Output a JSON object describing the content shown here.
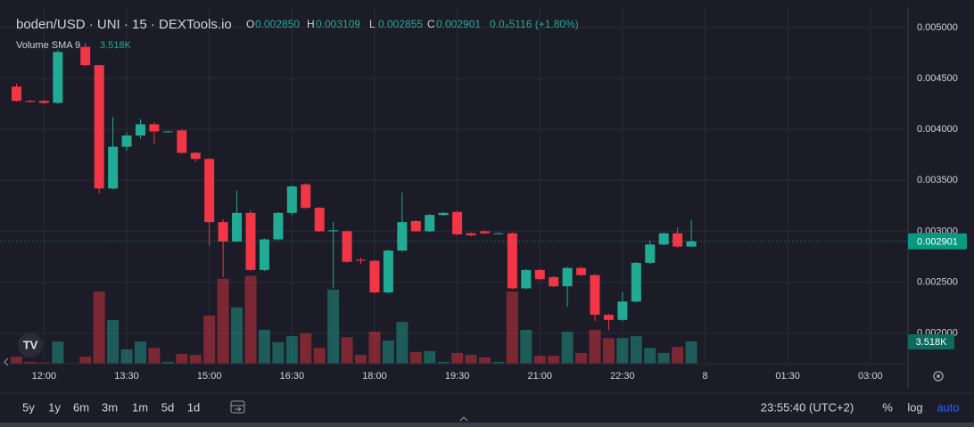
{
  "chart_data": {
    "type": "candlestick",
    "title": "boden/USD · UNI · 15 · DEXTools.io",
    "ohlc_header": [
      {
        "key": "O",
        "value": "0.002850"
      },
      {
        "key": "H",
        "value": "0.003109"
      },
      {
        "key": "L",
        "value": "0.002855"
      },
      {
        "key": "C",
        "value": "0.002901"
      }
    ],
    "change": "0.0₄5116 (+1.80%)",
    "volume_sma": {
      "name": "Volume SMA 9",
      "value": 3518,
      "label": "3.518K"
    },
    "up_color": "#22ab94",
    "down_color": "#f23645",
    "x": [
      690,
      705,
      720,
      735,
      765,
      780,
      795,
      810,
      825,
      840,
      855,
      870,
      885,
      900,
      915,
      930,
      945,
      960,
      975,
      990,
      1005,
      1020,
      1035,
      1050,
      1065,
      1080,
      1095,
      1110,
      1125,
      1140,
      1155,
      1170,
      1185,
      1200,
      1215,
      1230,
      1245,
      1260,
      1275,
      1290,
      1305,
      1320,
      1335,
      1350,
      1365,
      1380,
      1395,
      1410,
      1425
    ],
    "open": [
      0.00442,
      0.00428,
      0.00428,
      0.00426,
      0.00481,
      0.00463,
      0.00342,
      0.00383,
      0.00394,
      0.00405,
      0.00398,
      0.00399,
      0.00377,
      0.00371,
      0.00309,
      0.0029,
      0.00318,
      0.00262,
      0.00292,
      0.00318,
      0.00346,
      0.00323,
      0.003,
      0.003,
      0.00272,
      0.00271,
      0.0024,
      0.00281,
      0.0031,
      0.003,
      0.00316,
      0.00319,
      0.00298,
      0.003,
      0.00298,
      0.00298,
      0.00244,
      0.00262,
      0.00255,
      0.00246,
      0.00264,
      0.00257,
      0.00218,
      0.00213,
      0.00231,
      0.00269,
      0.00287,
      0.00298,
      0.00285
    ],
    "high": [
      0.00445,
      0.00429,
      0.00429,
      0.00478,
      0.00485,
      0.00463,
      0.00412,
      0.00397,
      0.0041,
      0.00407,
      0.00399,
      0.004,
      0.00378,
      0.00372,
      0.00312,
      0.0034,
      0.00321,
      0.00293,
      0.00319,
      0.00345,
      0.00347,
      0.00324,
      0.00309,
      0.00301,
      0.00274,
      0.00272,
      0.00282,
      0.00338,
      0.00311,
      0.00317,
      0.00319,
      0.0032,
      0.00299,
      0.00301,
      0.00299,
      0.00299,
      0.00263,
      0.00263,
      0.00256,
      0.00265,
      0.00265,
      0.00258,
      0.00219,
      0.0024,
      0.0027,
      0.00291,
      0.00299,
      0.00304,
      0.003109
    ],
    "low": [
      0.00427,
      0.00426,
      0.00425,
      0.00425,
      0.00462,
      0.00337,
      0.00341,
      0.00379,
      0.00391,
      0.00386,
      0.00397,
      0.00376,
      0.00368,
      0.00286,
      0.00255,
      0.00289,
      0.00261,
      0.00261,
      0.00291,
      0.00316,
      0.00322,
      0.00299,
      0.00244,
      0.00269,
      0.00268,
      0.00239,
      0.00239,
      0.0028,
      0.00299,
      0.00299,
      0.00315,
      0.00296,
      0.00295,
      0.00297,
      0.00297,
      0.00243,
      0.00243,
      0.00252,
      0.00245,
      0.00226,
      0.00256,
      0.00212,
      0.00203,
      0.00212,
      0.0023,
      0.00268,
      0.00286,
      0.00284,
      0.002855
    ],
    "close": [
      0.00428,
      0.00427,
      0.00426,
      0.00476,
      0.00463,
      0.00342,
      0.00383,
      0.00394,
      0.00405,
      0.00398,
      0.00398,
      0.00377,
      0.00371,
      0.00309,
      0.0029,
      0.00318,
      0.00262,
      0.00292,
      0.00318,
      0.00344,
      0.00323,
      0.003,
      0.00301,
      0.0027,
      0.00271,
      0.0024,
      0.00281,
      0.00309,
      0.003,
      0.00316,
      0.00318,
      0.00297,
      0.00296,
      0.00298,
      0.00298,
      0.00244,
      0.00262,
      0.00253,
      0.00246,
      0.00264,
      0.00257,
      0.00218,
      0.00213,
      0.00231,
      0.00269,
      0.00287,
      0.00298,
      0.00285,
      0.002901
    ],
    "volume": [
      1100,
      300,
      200,
      3500,
      1100,
      11400,
      6900,
      2250,
      3500,
      2500,
      300,
      1550,
      1400,
      7600,
      13400,
      8900,
      13900,
      5350,
      3400,
      4350,
      4800,
      2500,
      11700,
      4200,
      1400,
      5050,
      3650,
      6600,
      1850,
      2000,
      300,
      1700,
      1400,
      1000,
      300,
      11400,
      5350,
      1250,
      1250,
      5050,
      1700,
      5350,
      4050,
      4050,
      4350,
      2500,
      1700,
      2650,
      3518
    ],
    "volume_lim": [
      0,
      56300
    ],
    "xlim": [
      672,
      1661
    ],
    "xticks": [
      {
        "value": 720,
        "label": "12:00"
      },
      {
        "value": 810,
        "label": "13:30"
      },
      {
        "value": 900,
        "label": "15:00"
      },
      {
        "value": 990,
        "label": "16:30"
      },
      {
        "value": 1080,
        "label": "18:00"
      },
      {
        "value": 1170,
        "label": "19:30"
      },
      {
        "value": 1260,
        "label": "21:00"
      },
      {
        "value": 1350,
        "label": "22:30"
      },
      {
        "value": 1440,
        "label": "8"
      },
      {
        "value": 1530,
        "label": "01:30"
      },
      {
        "value": 1620,
        "label": "03:00"
      }
    ],
    "ylim": [
      0.0017,
      0.0052
    ],
    "yticks": [
      {
        "value": 0.002,
        "label": "0.002000"
      },
      {
        "value": 0.0025,
        "label": "0.002500"
      },
      {
        "value": 0.003,
        "label": "0.003000"
      },
      {
        "value": 0.0035,
        "label": "0.003500"
      },
      {
        "value": 0.004,
        "label": "0.004000"
      },
      {
        "value": 0.0045,
        "label": "0.004500"
      },
      {
        "value": 0.005,
        "label": "0.005000"
      }
    ],
    "grid": true
  },
  "toolbar": {
    "ranges": [
      "5y",
      "1y",
      "6m",
      "3m",
      "1m",
      "5d",
      "1d"
    ],
    "clock": "23:55:40 (UTC+2)",
    "options": [
      "%",
      "log",
      "auto"
    ]
  }
}
